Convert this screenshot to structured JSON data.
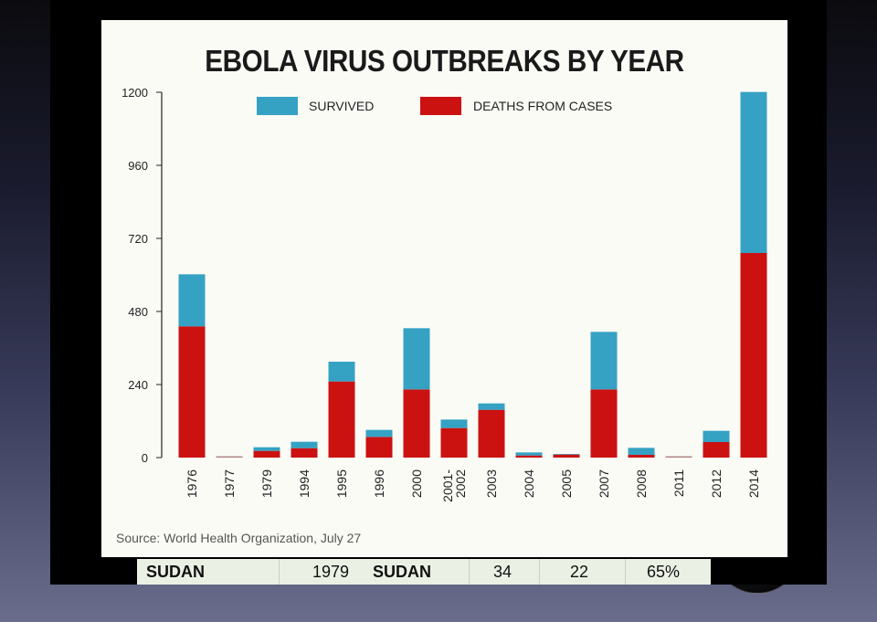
{
  "chart_data": {
    "type": "bar",
    "stacked": true,
    "title": "EBOLA VIRUS OUTBREAKS BY YEAR",
    "categories": [
      "1976",
      "1977",
      "1979",
      "1994",
      "1995",
      "1996",
      "2000",
      "2001-\n2002",
      "2003",
      "2004",
      "2005",
      "2007",
      "2008",
      "2011",
      "2012",
      "2014"
    ],
    "series": [
      {
        "name": "DEATHS FROM CASES",
        "color": "#cc1111",
        "values": [
          431,
          1,
          22,
          31,
          250,
          68,
          224,
          97,
          157,
          7,
          10,
          224,
          9,
          1,
          51,
          672
        ]
      },
      {
        "name": "SURVIVED",
        "color": "#35a2c4",
        "values": [
          171,
          0,
          12,
          21,
          65,
          23,
          201,
          28,
          21,
          10,
          2,
          189,
          23,
          0,
          37,
          529
        ]
      }
    ],
    "yticks": [
      0,
      240,
      480,
      720,
      960,
      1200
    ],
    "ytick_labels": [
      "0",
      "240",
      "480",
      "720",
      "960",
      "1200"
    ],
    "ylim": [
      0,
      1200
    ],
    "legend_position": "top",
    "grid": false
  },
  "source_note": "Source: World Health Organization, July 27",
  "table_row": {
    "country": "SUDAN",
    "year": "1979",
    "country2": "SUDAN",
    "cases": "34",
    "deaths": "22",
    "fatality": "65%"
  }
}
